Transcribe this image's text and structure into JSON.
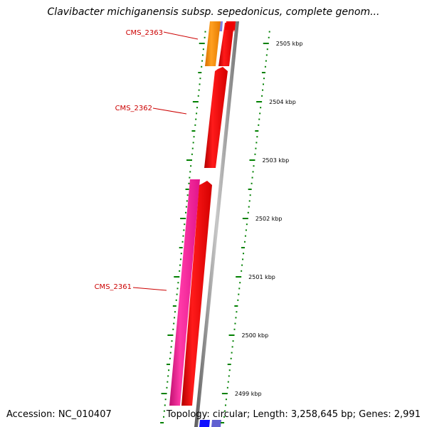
{
  "title": "Clavibacter michiganensis subsp. sepedonicus, complete genom...",
  "footer": {
    "accession": "Accession: NC_010407",
    "summary": "Topology: circular; Length: 3,258,645 bp; Genes: 2,991"
  },
  "colors": {
    "forward_gene": "#ff0000",
    "reverse_gene": "#ff1493",
    "orange_gene": "#ff8c00",
    "backbone": "#808080",
    "tick": "#008000",
    "label": "#cc0000"
  },
  "ticks": [
    {
      "label": "2505 kbp",
      "kbp": 2505
    },
    {
      "label": "2504 kbp",
      "kbp": 2504
    },
    {
      "label": "2503 kbp",
      "kbp": 2503
    },
    {
      "label": "2502 kbp",
      "kbp": 2502
    },
    {
      "label": "2501 kbp",
      "kbp": 2501
    },
    {
      "label": "2500 kbp",
      "kbp": 2500
    },
    {
      "label": "2499 kbp",
      "kbp": 2499
    }
  ],
  "genes": [
    {
      "name": "CMS_2363"
    },
    {
      "name": "CMS_2362"
    },
    {
      "name": "CMS_2361"
    }
  ]
}
